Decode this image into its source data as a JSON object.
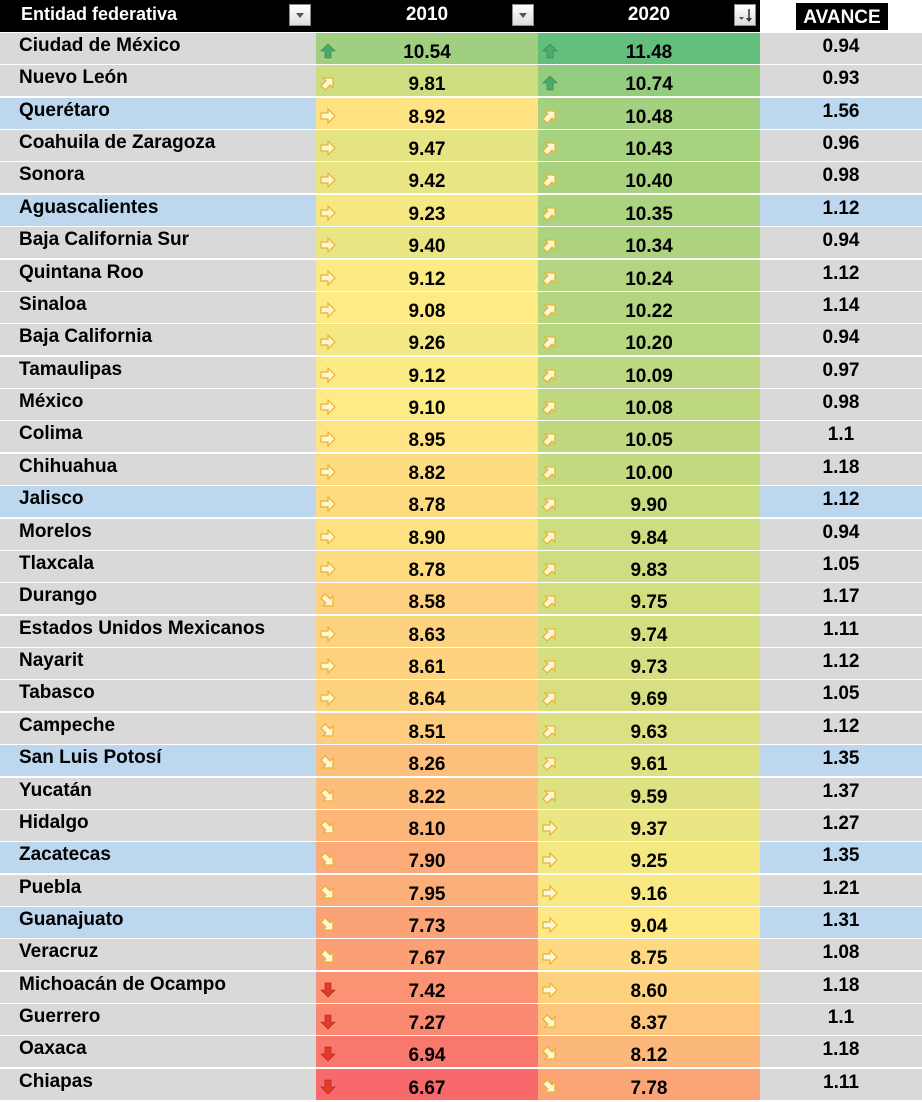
{
  "header": {
    "name_label": "Entidad federativa",
    "y2010_label": "2010",
    "y2020_label": "2020",
    "avance_label": "AVANCE"
  },
  "colors": {
    "header_bg": "#000000",
    "row_gray": "#d9d9d9",
    "row_highlight": "#bdd7ee",
    "scale_low": "#f8696b",
    "scale_mid": "#ffeb84",
    "scale_high": "#63be7b",
    "icon_green": "#4bab6d",
    "icon_yellow": "#e9b22c",
    "icon_red": "#e23b2b"
  },
  "rows": [
    {
      "name": "Ciudad de México",
      "v2010": "10.54",
      "v2020": "11.48",
      "avance": "0.94",
      "icon2010": "arrow-up-icon",
      "icon2020": "arrow-up-icon",
      "highlight": false
    },
    {
      "name": "Nuevo León",
      "v2010": "9.81",
      "v2020": "10.74",
      "avance": "0.93",
      "icon2010": "arrow-up-right-icon",
      "icon2020": "arrow-up-icon",
      "highlight": false
    },
    {
      "name": "Querétaro",
      "v2010": "8.92",
      "v2020": "10.48",
      "avance": "1.56",
      "icon2010": "arrow-right-icon",
      "icon2020": "arrow-up-right-icon",
      "highlight": true
    },
    {
      "name": "Coahuila de Zaragoza",
      "v2010": "9.47",
      "v2020": "10.43",
      "avance": "0.96",
      "icon2010": "arrow-right-icon",
      "icon2020": "arrow-up-right-icon",
      "highlight": false
    },
    {
      "name": "Sonora",
      "v2010": "9.42",
      "v2020": "10.40",
      "avance": "0.98",
      "icon2010": "arrow-right-icon",
      "icon2020": "arrow-up-right-icon",
      "highlight": false
    },
    {
      "name": "Aguascalientes",
      "v2010": "9.23",
      "v2020": "10.35",
      "avance": "1.12",
      "icon2010": "arrow-right-icon",
      "icon2020": "arrow-up-right-icon",
      "highlight": true
    },
    {
      "name": "Baja California Sur",
      "v2010": "9.40",
      "v2020": "10.34",
      "avance": "0.94",
      "icon2010": "arrow-right-icon",
      "icon2020": "arrow-up-right-icon",
      "highlight": false
    },
    {
      "name": "Quintana Roo",
      "v2010": "9.12",
      "v2020": "10.24",
      "avance": "1.12",
      "icon2010": "arrow-right-icon",
      "icon2020": "arrow-up-right-icon",
      "highlight": false
    },
    {
      "name": "Sinaloa",
      "v2010": "9.08",
      "v2020": "10.22",
      "avance": "1.14",
      "icon2010": "arrow-right-icon",
      "icon2020": "arrow-up-right-icon",
      "highlight": false
    },
    {
      "name": "Baja California",
      "v2010": "9.26",
      "v2020": "10.20",
      "avance": "0.94",
      "icon2010": "arrow-right-icon",
      "icon2020": "arrow-up-right-icon",
      "highlight": false
    },
    {
      "name": "Tamaulipas",
      "v2010": "9.12",
      "v2020": "10.09",
      "avance": "0.97",
      "icon2010": "arrow-right-icon",
      "icon2020": "arrow-up-right-icon",
      "highlight": false
    },
    {
      "name": "México",
      "v2010": "9.10",
      "v2020": "10.08",
      "avance": "0.98",
      "icon2010": "arrow-right-icon",
      "icon2020": "arrow-up-right-icon",
      "highlight": false
    },
    {
      "name": "Colima",
      "v2010": "8.95",
      "v2020": "10.05",
      "avance": "1.1",
      "icon2010": "arrow-right-icon",
      "icon2020": "arrow-up-right-icon",
      "highlight": false
    },
    {
      "name": "Chihuahua",
      "v2010": "8.82",
      "v2020": "10.00",
      "avance": "1.18",
      "icon2010": "arrow-right-icon",
      "icon2020": "arrow-up-right-icon",
      "highlight": false
    },
    {
      "name": "Jalisco",
      "v2010": "8.78",
      "v2020": "9.90",
      "avance": "1.12",
      "icon2010": "arrow-right-icon",
      "icon2020": "arrow-up-right-icon",
      "highlight": true
    },
    {
      "name": "Morelos",
      "v2010": "8.90",
      "v2020": "9.84",
      "avance": "0.94",
      "icon2010": "arrow-right-icon",
      "icon2020": "arrow-up-right-icon",
      "highlight": false
    },
    {
      "name": "Tlaxcala",
      "v2010": "8.78",
      "v2020": "9.83",
      "avance": "1.05",
      "icon2010": "arrow-right-icon",
      "icon2020": "arrow-up-right-icon",
      "highlight": false
    },
    {
      "name": "Durango",
      "v2010": "8.58",
      "v2020": "9.75",
      "avance": "1.17",
      "icon2010": "arrow-down-right-icon",
      "icon2020": "arrow-up-right-icon",
      "highlight": false
    },
    {
      "name": "Estados Unidos Mexicanos",
      "v2010": "8.63",
      "v2020": "9.74",
      "avance": "1.11",
      "icon2010": "arrow-right-icon",
      "icon2020": "arrow-up-right-icon",
      "highlight": false
    },
    {
      "name": "Nayarit",
      "v2010": "8.61",
      "v2020": "9.73",
      "avance": "1.12",
      "icon2010": "arrow-right-icon",
      "icon2020": "arrow-up-right-icon",
      "highlight": false
    },
    {
      "name": "Tabasco",
      "v2010": "8.64",
      "v2020": "9.69",
      "avance": "1.05",
      "icon2010": "arrow-right-icon",
      "icon2020": "arrow-up-right-icon",
      "highlight": false
    },
    {
      "name": "Campeche",
      "v2010": "8.51",
      "v2020": "9.63",
      "avance": "1.12",
      "icon2010": "arrow-down-right-icon",
      "icon2020": "arrow-up-right-icon",
      "highlight": false
    },
    {
      "name": "San Luis Potosí",
      "v2010": "8.26",
      "v2020": "9.61",
      "avance": "1.35",
      "icon2010": "arrow-down-right-icon",
      "icon2020": "arrow-up-right-icon",
      "highlight": true
    },
    {
      "name": "Yucatán",
      "v2010": "8.22",
      "v2020": "9.59",
      "avance": "1.37",
      "icon2010": "arrow-down-right-icon",
      "icon2020": "arrow-up-right-icon",
      "highlight": false
    },
    {
      "name": "Hidalgo",
      "v2010": "8.10",
      "v2020": "9.37",
      "avance": "1.27",
      "icon2010": "arrow-down-right-icon",
      "icon2020": "arrow-right-icon",
      "highlight": false
    },
    {
      "name": "Zacatecas",
      "v2010": "7.90",
      "v2020": "9.25",
      "avance": "1.35",
      "icon2010": "arrow-down-right-icon",
      "icon2020": "arrow-right-icon",
      "highlight": true
    },
    {
      "name": "Puebla",
      "v2010": "7.95",
      "v2020": "9.16",
      "avance": "1.21",
      "icon2010": "arrow-down-right-icon",
      "icon2020": "arrow-right-icon",
      "highlight": false
    },
    {
      "name": "Guanajuato",
      "v2010": "7.73",
      "v2020": "9.04",
      "avance": "1.31",
      "icon2010": "arrow-down-right-icon",
      "icon2020": "arrow-right-icon",
      "highlight": true
    },
    {
      "name": "Veracruz",
      "v2010": "7.67",
      "v2020": "8.75",
      "avance": "1.08",
      "icon2010": "arrow-down-right-icon",
      "icon2020": "arrow-right-icon",
      "highlight": false
    },
    {
      "name": "Michoacán de Ocampo",
      "v2010": "7.42",
      "v2020": "8.60",
      "avance": "1.18",
      "icon2010": "arrow-down-icon",
      "icon2020": "arrow-right-icon",
      "highlight": false
    },
    {
      "name": "Guerrero",
      "v2010": "7.27",
      "v2020": "8.37",
      "avance": "1.1",
      "icon2010": "arrow-down-icon",
      "icon2020": "arrow-down-right-icon",
      "highlight": false
    },
    {
      "name": "Oaxaca",
      "v2010": "6.94",
      "v2020": "8.12",
      "avance": "1.18",
      "icon2010": "arrow-down-icon",
      "icon2020": "arrow-down-right-icon",
      "highlight": false
    },
    {
      "name": "Chiapas",
      "v2010": "6.67",
      "v2020": "7.78",
      "avance": "1.11",
      "icon2010": "arrow-down-icon",
      "icon2020": "arrow-down-right-icon",
      "highlight": false
    }
  ]
}
